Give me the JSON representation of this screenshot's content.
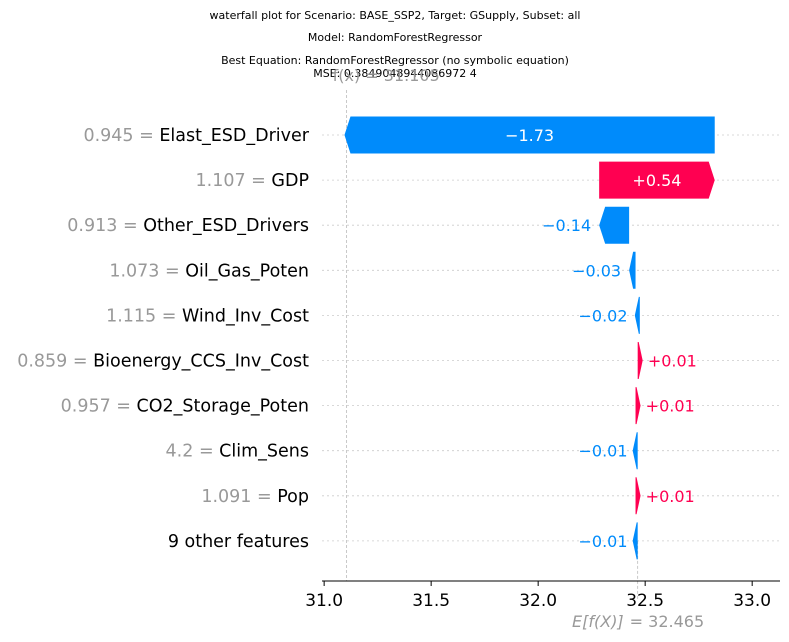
{
  "chart_data": {
    "type": "waterfall",
    "title_lines": [
      "waterfall plot for Scenario: BASE_SSP2, Target: GSupply, Subset: all",
      "Model: RandomForestRegressor",
      "Best Equation: RandomForestRegressor (no symbolic equation)",
      "MSE: 0.3849048944086972 4"
    ],
    "fx_label": "f(x) = 31.105",
    "efx_label": "E[f(X)]",
    "efx_value": "= 32.465",
    "base_value": 32.465,
    "final_value": 31.105,
    "xlim": [
      30.99,
      33.13
    ],
    "xticks": [
      31.0,
      31.5,
      32.0,
      32.5,
      33.0
    ],
    "xtick_labels": [
      "31.0",
      "31.5",
      "32.0",
      "32.5",
      "33.0"
    ],
    "features": [
      {
        "value": "0.945",
        "name": "Elast_ESD_Driver",
        "contribution": -1.73,
        "label": "−1.73"
      },
      {
        "value": "1.107",
        "name": "GDP",
        "contribution": 0.54,
        "label": "+0.54"
      },
      {
        "value": "0.913",
        "name": "Other_ESD_Drivers",
        "contribution": -0.14,
        "label": "−0.14"
      },
      {
        "value": "1.073",
        "name": "Oil_Gas_Poten",
        "contribution": -0.03,
        "label": "−0.03"
      },
      {
        "value": "1.115",
        "name": "Wind_Inv_Cost",
        "contribution": -0.02,
        "label": "−0.02"
      },
      {
        "value": "0.859",
        "name": "Bioenergy_CCS_Inv_Cost",
        "contribution": 0.01,
        "label": "+0.01"
      },
      {
        "value": "0.957",
        "name": "CO2_Storage_Poten",
        "contribution": 0.01,
        "label": "+0.01"
      },
      {
        "value": "4.2",
        "name": "Clim_Sens",
        "contribution": -0.01,
        "label": "−0.01"
      },
      {
        "value": "1.091",
        "name": "Pop",
        "contribution": 0.01,
        "label": "+0.01"
      },
      {
        "value": "",
        "name": "9 other features",
        "contribution": -0.01,
        "label": "−0.01"
      }
    ],
    "colors": {
      "positive": "#ff0051",
      "negative": "#008bfb",
      "value_text": "#999999"
    }
  }
}
